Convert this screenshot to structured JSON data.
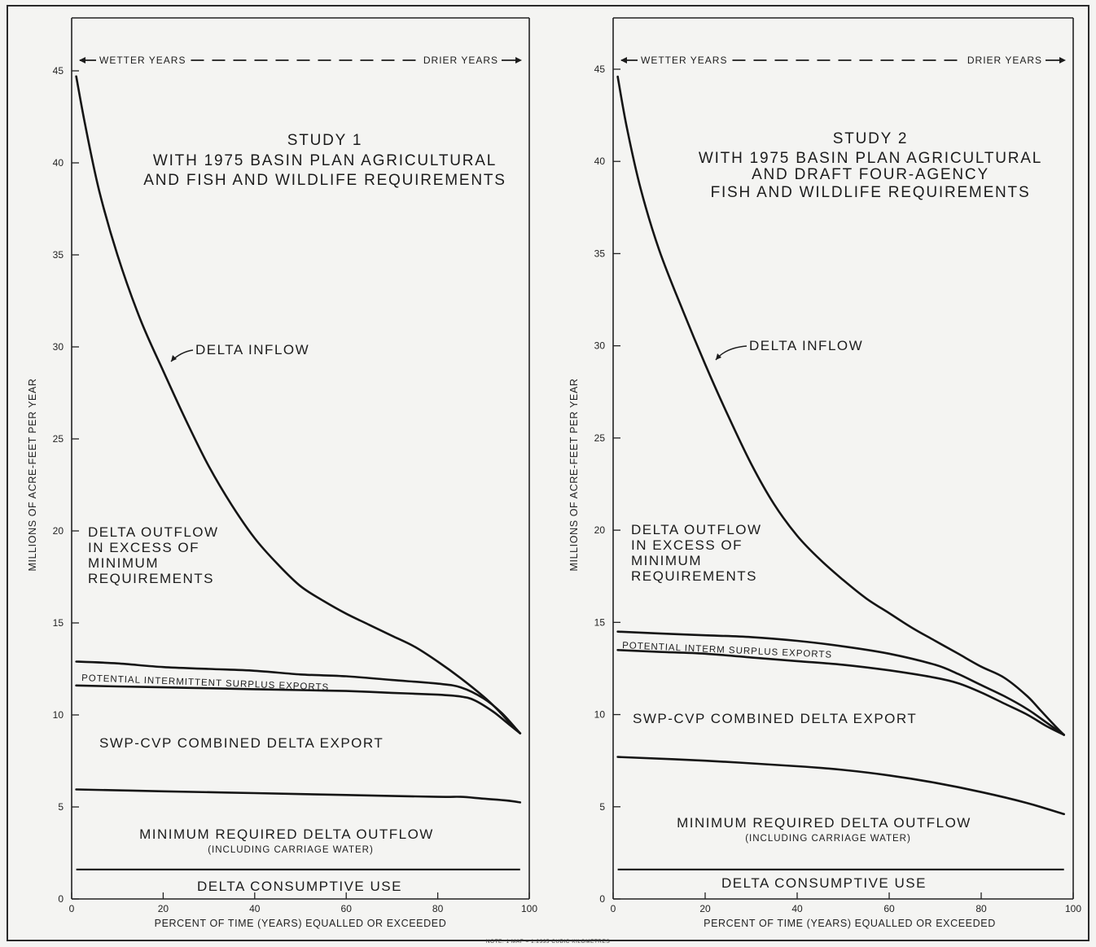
{
  "note": "NOTE: 1 MAF = 1.2335 CUBIC KILOMETRES",
  "chart_data": [
    {
      "type": "area",
      "title_lines": [
        "STUDY 1",
        "WITH 1975 BASIN PLAN AGRICULTURAL",
        "AND FISH AND WILDLIFE REQUIREMENTS"
      ],
      "xlabel": "PERCENT OF TIME (YEARS) EQUALLED OR EXCEEDED",
      "ylabel": "MILLIONS OF ACRE-FEET PER YEAR",
      "xlim": [
        0,
        100
      ],
      "ylim": [
        0,
        45
      ],
      "xticks": [
        "0",
        "20",
        "40",
        "60",
        "80",
        "100"
      ],
      "yticks": [
        "0",
        "5",
        "10",
        "15",
        "20",
        "25",
        "30",
        "35",
        "40",
        "45"
      ],
      "header_left": "WETTER YEARS",
      "header_right": "DRIER YEARS",
      "series": [
        {
          "key": "delta_inflow",
          "x": [
            1,
            3,
            6,
            10,
            15,
            20,
            25,
            30,
            35,
            40,
            45,
            50,
            55,
            60,
            65,
            70,
            75,
            80,
            85,
            90,
            93,
            96,
            98
          ],
          "y": [
            44.7,
            42.0,
            38.5,
            35.0,
            31.5,
            28.7,
            26.0,
            23.5,
            21.4,
            19.6,
            18.2,
            17.0,
            16.2,
            15.5,
            14.9,
            14.3,
            13.7,
            12.9,
            12.0,
            11.0,
            10.3,
            9.5,
            9.0
          ]
        },
        {
          "key": "upper_export",
          "x": [
            1,
            10,
            20,
            30,
            40,
            50,
            60,
            70,
            80,
            85,
            90,
            94,
            98
          ],
          "y": [
            12.9,
            12.8,
            12.6,
            12.5,
            12.4,
            12.2,
            12.1,
            11.9,
            11.7,
            11.5,
            10.9,
            10.1,
            9.0
          ]
        },
        {
          "key": "lower_export",
          "x": [
            1,
            10,
            20,
            30,
            40,
            50,
            60,
            70,
            80,
            85,
            88,
            92,
            95,
            98
          ],
          "y": [
            11.6,
            11.55,
            11.5,
            11.45,
            11.4,
            11.35,
            11.3,
            11.2,
            11.1,
            11.0,
            10.8,
            10.2,
            9.6,
            9.0
          ]
        },
        {
          "key": "min_outflow",
          "x": [
            1,
            20,
            40,
            60,
            80,
            85,
            90,
            95,
            98
          ],
          "y": [
            5.95,
            5.85,
            5.75,
            5.65,
            5.55,
            5.55,
            5.45,
            5.35,
            5.25
          ]
        },
        {
          "key": "consumptive",
          "x": [
            1,
            98
          ],
          "y": [
            1.6,
            1.6
          ]
        }
      ],
      "labels": {
        "delta_inflow": "DELTA INFLOW",
        "outflow_excess": [
          "DELTA OUTFLOW",
          "IN EXCESS OF",
          "MINIMUM",
          "REQUIREMENTS"
        ],
        "surplus": "POTENTIAL INTERMITTENT SURPLUS EXPORTS",
        "export": "SWP-CVP COMBINED DELTA EXPORT",
        "min_outflow": "MINIMUM REQUIRED DELTA OUTFLOW",
        "carriage": "(INCLUDING CARRIAGE WATER)",
        "consumptive": "DELTA CONSUMPTIVE USE"
      }
    },
    {
      "type": "area",
      "title_lines": [
        "STUDY 2",
        "WITH 1975 BASIN PLAN AGRICULTURAL",
        "AND DRAFT FOUR-AGENCY",
        "FISH AND WILDLIFE REQUIREMENTS"
      ],
      "xlabel": "PERCENT OF TIME (YEARS) EQUALLED OR EXCEEDED",
      "ylabel": "MILLIONS OF ACRE-FEET PER YEAR",
      "xlim": [
        0,
        100
      ],
      "ylim": [
        0,
        45
      ],
      "xticks": [
        "0",
        "20",
        "40",
        "60",
        "80",
        "100"
      ],
      "yticks": [
        "0",
        "5",
        "10",
        "15",
        "20",
        "25",
        "30",
        "35",
        "40",
        "45"
      ],
      "header_left": "WETTER YEARS",
      "header_right": "DRIER YEARS",
      "series": [
        {
          "key": "delta_inflow",
          "x": [
            1,
            3,
            6,
            10,
            15,
            20,
            25,
            30,
            35,
            40,
            45,
            50,
            55,
            60,
            65,
            70,
            75,
            80,
            85,
            90,
            93,
            96,
            98
          ],
          "y": [
            44.6,
            41.8,
            38.5,
            35.2,
            32.0,
            29.0,
            26.2,
            23.6,
            21.4,
            19.7,
            18.4,
            17.3,
            16.3,
            15.5,
            14.7,
            14.0,
            13.3,
            12.6,
            12.0,
            11.0,
            10.2,
            9.4,
            8.9
          ]
        },
        {
          "key": "upper_export",
          "x": [
            1,
            10,
            20,
            30,
            40,
            50,
            60,
            70,
            75,
            80,
            85,
            90,
            94,
            98
          ],
          "y": [
            14.5,
            14.4,
            14.3,
            14.2,
            14.0,
            13.7,
            13.3,
            12.7,
            12.2,
            11.6,
            11.0,
            10.3,
            9.6,
            8.9
          ]
        },
        {
          "key": "lower_export",
          "x": [
            1,
            10,
            20,
            30,
            40,
            50,
            60,
            70,
            75,
            80,
            85,
            90,
            94,
            98
          ],
          "y": [
            13.5,
            13.4,
            13.3,
            13.1,
            12.9,
            12.7,
            12.4,
            12.0,
            11.7,
            11.2,
            10.6,
            10.0,
            9.4,
            8.9
          ]
        },
        {
          "key": "min_outflow",
          "x": [
            1,
            20,
            40,
            50,
            60,
            70,
            80,
            90,
            98
          ],
          "y": [
            7.7,
            7.5,
            7.2,
            7.0,
            6.7,
            6.3,
            5.8,
            5.2,
            4.6
          ]
        },
        {
          "key": "consumptive",
          "x": [
            1,
            98
          ],
          "y": [
            1.6,
            1.6
          ]
        }
      ],
      "labels": {
        "delta_inflow": "DELTA INFLOW",
        "outflow_excess": [
          "DELTA OUTFLOW",
          "IN EXCESS OF",
          "MINIMUM",
          "REQUIREMENTS"
        ],
        "surplus": "POTENTIAL INTERM SURPLUS EXPORTS",
        "export": "SWP-CVP COMBINED DELTA EXPORT",
        "min_outflow": "MINIMUM REQUIRED DELTA OUTFLOW",
        "carriage": "(INCLUDING CARRIAGE WATER)",
        "consumptive": "DELTA CONSUMPTIVE USE"
      }
    }
  ]
}
